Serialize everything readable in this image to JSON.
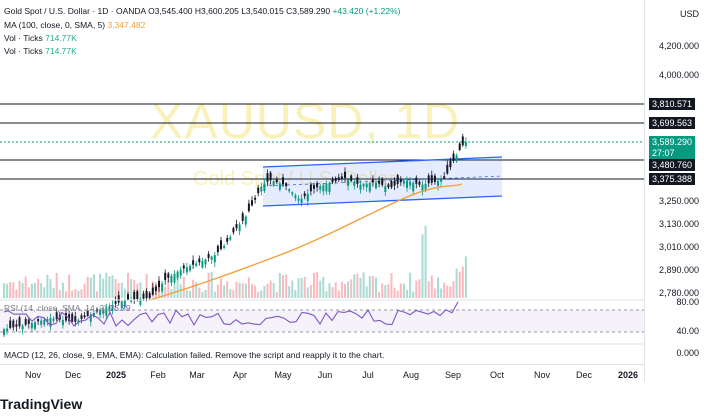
{
  "header": {
    "title": "Gold Spot / U.S. Dollar · 1D · OANDA",
    "ohlc": "O3,545.400  H3,600.205  L3,540.015  C3,589.290",
    "change": "+43.420 (+1.22%)",
    "ma_label": "MA (100, close, 0, SMA, 5)",
    "ma_value": "3,347.482",
    "vol_label_1": "Vol · Ticks",
    "vol_value_1": "714.77K",
    "vol_label_2": "Vol · Ticks",
    "vol_value_2": "714.77K"
  },
  "watermark": {
    "symbol": "XAUUSD, 1D",
    "name": "Gold Spot / U.S. Dollar"
  },
  "axis": {
    "currency": "USD",
    "ticks": [
      "4,200.000",
      "4,000.000",
      "3,250.000",
      "3,130.000",
      "3,010.000",
      "2,890.000",
      "2,780.000"
    ],
    "price_tags": [
      {
        "label": "3,810.571",
        "color": "#131722"
      },
      {
        "label": "3,699.563",
        "color": "#131722"
      },
      {
        "label": "3,589.290",
        "sub": "27:07",
        "color": "#089981"
      },
      {
        "label": "3,480.760",
        "color": "#131722"
      },
      {
        "label": "3,375.388",
        "color": "#131722"
      }
    ],
    "rsi_ticks": [
      "80.00",
      "40.00"
    ],
    "macd_tick": "0.000"
  },
  "rsi": {
    "label": "RSI (14, close, SMA, 14, 2)",
    "value": "76.79"
  },
  "macd": {
    "label": "MACD (12, 26, close, 9, EMA, EMA): Calculation failed. Remove the script and reapply it to the chart."
  },
  "xaxis": [
    "Nov",
    "Dec",
    "2025",
    "Feb",
    "Mar",
    "Apr",
    "May",
    "Jun",
    "Jul",
    "Aug",
    "Sep",
    "Oct",
    "Nov",
    "Dec",
    "2026"
  ],
  "footer": {
    "brand": "TradingView"
  },
  "colors": {
    "up": "#089981",
    "down": "#131722",
    "ma": "#f0a13d",
    "channel": "#2962ff",
    "rsi": "#7e57c2"
  }
}
